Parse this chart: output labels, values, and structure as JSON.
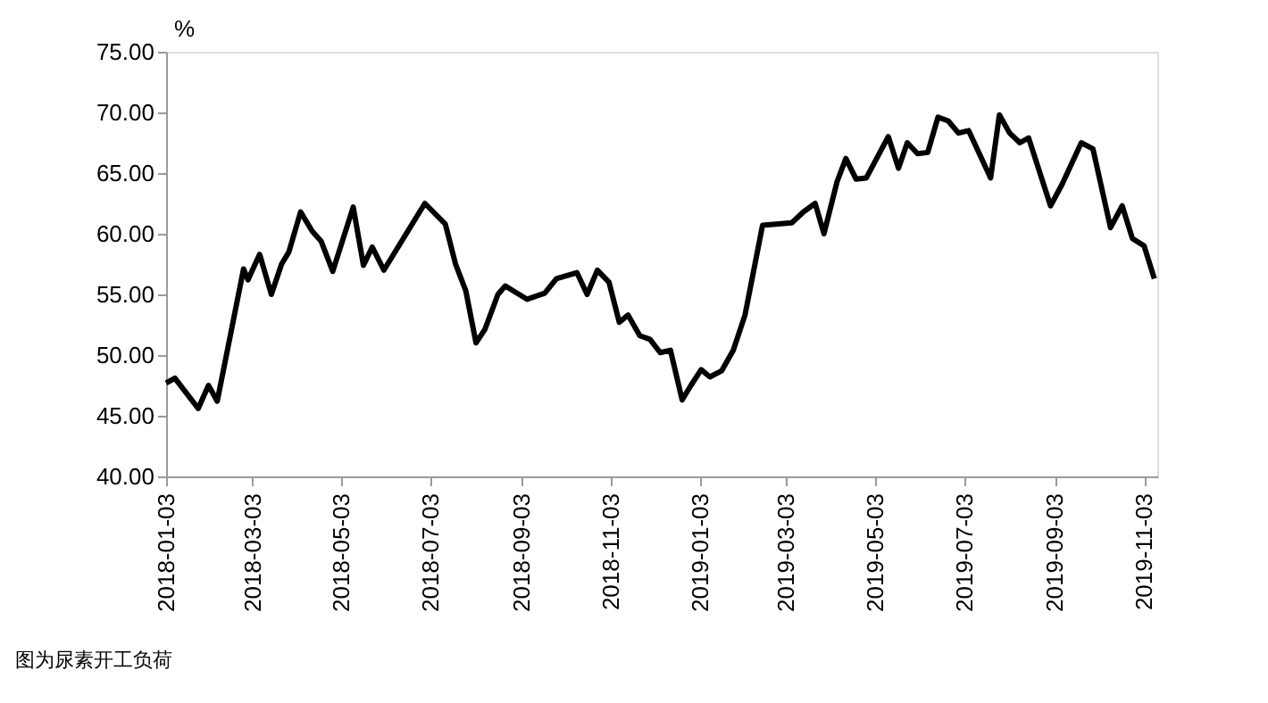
{
  "chart_data": {
    "type": "line",
    "ylabel": "%",
    "x": [
      "2018-01-03",
      "2018-01-09",
      "2018-01-25",
      "2018-02-01",
      "2018-02-07",
      "2018-02-25",
      "2018-02-28",
      "2018-03-08",
      "2018-03-16",
      "2018-03-23",
      "2018-03-28",
      "2018-04-05",
      "2018-04-13",
      "2018-04-19",
      "2018-04-27",
      "2018-05-11",
      "2018-05-18",
      "2018-05-24",
      "2018-06-01",
      "2018-06-29",
      "2018-07-13",
      "2018-07-20",
      "2018-07-27",
      "2018-08-03",
      "2018-08-09",
      "2018-08-18",
      "2018-08-23",
      "2018-09-07",
      "2018-09-19",
      "2018-09-27",
      "2018-10-11",
      "2018-10-18",
      "2018-10-25",
      "2018-11-02",
      "2018-11-09",
      "2018-11-15",
      "2018-11-23",
      "2018-11-30",
      "2018-12-07",
      "2018-12-14",
      "2018-12-22",
      "2018-12-28",
      "2019-01-04",
      "2019-01-10",
      "2019-01-18",
      "2019-01-26",
      "2019-02-03",
      "2019-02-15",
      "2019-03-07",
      "2019-03-15",
      "2019-03-23",
      "2019-03-29",
      "2019-04-07",
      "2019-04-13",
      "2019-04-20",
      "2019-04-27",
      "2019-05-12",
      "2019-05-19",
      "2019-05-25",
      "2019-06-01",
      "2019-06-08",
      "2019-06-15",
      "2019-06-22",
      "2019-06-29",
      "2019-07-06",
      "2019-07-21",
      "2019-07-27",
      "2019-08-03",
      "2019-08-10",
      "2019-08-16",
      "2019-08-31",
      "2019-09-08",
      "2019-09-21",
      "2019-09-29",
      "2019-10-11",
      "2019-10-19",
      "2019-10-26",
      "2019-11-03",
      "2019-11-10"
    ],
    "series": [
      {
        "color": "#000000",
        "values": [
          47.7,
          48.1,
          45.6,
          47.5,
          46.2,
          57.1,
          56.2,
          58.3,
          55.0,
          57.5,
          58.5,
          61.8,
          60.2,
          59.4,
          56.9,
          62.2,
          57.4,
          58.9,
          57.0,
          62.5,
          60.8,
          57.5,
          55.3,
          51.0,
          52.1,
          55.0,
          55.7,
          54.6,
          55.1,
          56.3,
          56.8,
          55.0,
          57.0,
          56.0,
          52.7,
          53.3,
          51.6,
          51.3,
          50.2,
          50.4,
          46.3,
          47.5,
          48.8,
          48.2,
          48.7,
          50.4,
          53.3,
          60.7,
          60.9,
          61.8,
          62.5,
          60.0,
          64.3,
          66.2,
          64.5,
          64.6,
          68.0,
          65.4,
          67.5,
          66.6,
          66.7,
          69.6,
          69.3,
          68.3,
          68.5,
          64.6,
          69.8,
          68.3,
          67.5,
          67.9,
          62.3,
          64.1,
          67.5,
          67.0,
          60.5,
          62.3,
          59.6,
          59.0,
          56.3
        ]
      }
    ],
    "xlim": [
      "2018-01-03",
      "2019-11-12"
    ],
    "xticks": [
      "2018-01-03",
      "2018-03-03",
      "2018-05-03",
      "2018-07-03",
      "2018-09-03",
      "2018-11-03",
      "2019-01-03",
      "2019-03-03",
      "2019-05-03",
      "2019-07-03",
      "2019-09-03",
      "2019-11-03"
    ],
    "ylim": [
      40,
      75
    ],
    "yticks": [
      {
        "value": 40,
        "label": "40.00"
      },
      {
        "value": 45,
        "label": "45.00"
      },
      {
        "value": 50,
        "label": "50.00"
      },
      {
        "value": 55,
        "label": "55.00"
      },
      {
        "value": 60,
        "label": "60.00"
      },
      {
        "value": 65,
        "label": "65.00"
      },
      {
        "value": 70,
        "label": "70.00"
      },
      {
        "value": 75,
        "label": "75.00"
      }
    ],
    "grid": false,
    "legend": false,
    "marker": "none",
    "line_style": "solid",
    "annotations": [
      "图为尿素开工负荷"
    ]
  }
}
